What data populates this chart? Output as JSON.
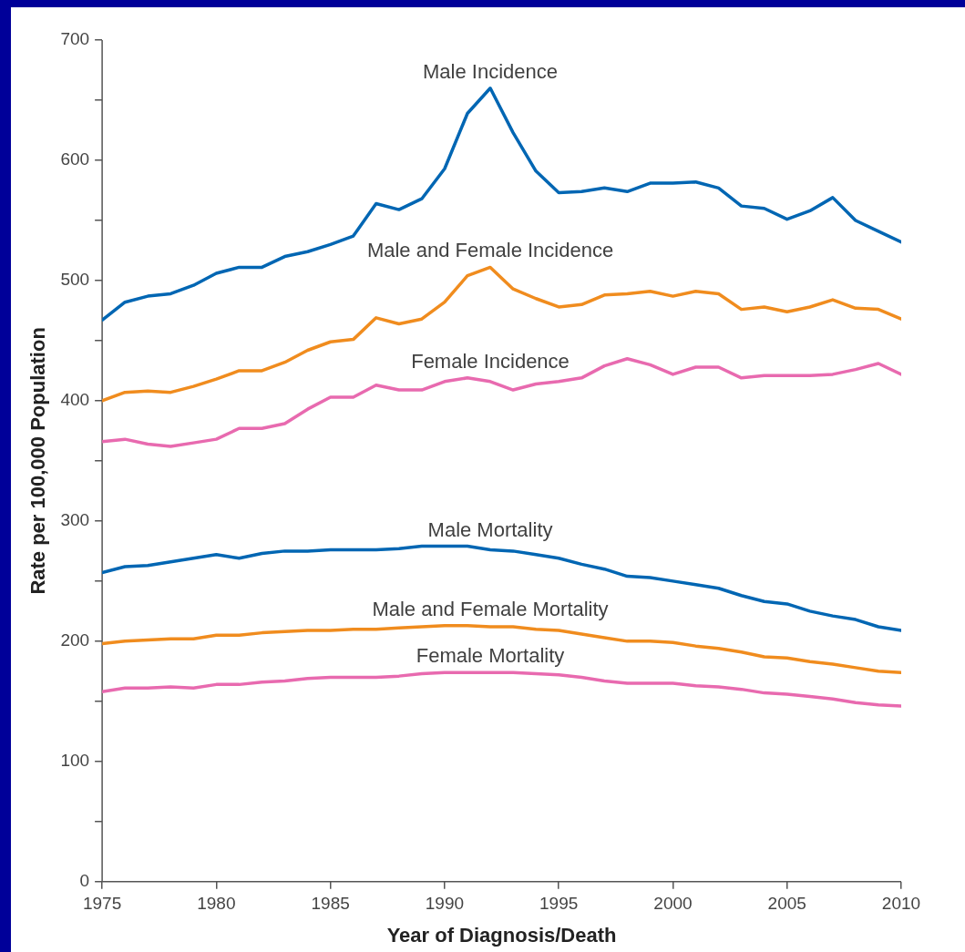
{
  "chart_data": {
    "type": "line",
    "xlabel": "Year of Diagnosis/Death",
    "ylabel": "Rate per 100,000 Population",
    "x": [
      1975,
      1976,
      1977,
      1978,
      1979,
      1980,
      1981,
      1982,
      1983,
      1984,
      1985,
      1986,
      1987,
      1988,
      1989,
      1990,
      1991,
      1992,
      1993,
      1994,
      1995,
      1996,
      1997,
      1998,
      1999,
      2000,
      2001,
      2002,
      2003,
      2004,
      2005,
      2006,
      2007,
      2008,
      2009,
      2010
    ],
    "series": [
      {
        "name": "Male Incidence",
        "color": "#0066b3",
        "values": [
          467,
          482,
          487,
          489,
          496,
          506,
          511,
          511,
          520,
          524,
          530,
          537,
          564,
          559,
          568,
          593,
          639,
          660,
          623,
          591,
          573,
          574,
          577,
          574,
          581,
          581,
          582,
          577,
          562,
          560,
          551,
          558,
          569,
          550,
          541,
          532
        ]
      },
      {
        "name": "Male and Female Incidence",
        "color": "#f08c1e",
        "values": [
          400,
          407,
          408,
          407,
          412,
          418,
          425,
          425,
          432,
          442,
          449,
          451,
          469,
          464,
          468,
          482,
          504,
          511,
          493,
          485,
          478,
          480,
          488,
          489,
          491,
          487,
          491,
          489,
          476,
          478,
          474,
          478,
          484,
          477,
          476,
          468
        ]
      },
      {
        "name": "Female Incidence",
        "color": "#e86aaf",
        "values": [
          366,
          368,
          364,
          362,
          365,
          368,
          377,
          377,
          381,
          393,
          403,
          403,
          413,
          409,
          409,
          416,
          419,
          416,
          409,
          414,
          416,
          419,
          429,
          435,
          430,
          422,
          428,
          428,
          419,
          421,
          421,
          421,
          422,
          426,
          431,
          422
        ]
      },
      {
        "name": "Male Mortality",
        "color": "#0066b3",
        "values": [
          257,
          262,
          263,
          266,
          269,
          272,
          269,
          273,
          275,
          275,
          276,
          276,
          276,
          277,
          279,
          279,
          279,
          276,
          275,
          272,
          269,
          264,
          260,
          254,
          253,
          250,
          247,
          244,
          238,
          233,
          231,
          225,
          221,
          218,
          212,
          209
        ]
      },
      {
        "name": "Male and Female Mortality",
        "color": "#f08c1e",
        "values": [
          198,
          200,
          201,
          202,
          202,
          205,
          205,
          207,
          208,
          209,
          209,
          210,
          210,
          211,
          212,
          213,
          213,
          212,
          212,
          210,
          209,
          206,
          203,
          200,
          200,
          199,
          196,
          194,
          191,
          187,
          186,
          183,
          181,
          178,
          175,
          174
        ]
      },
      {
        "name": "Female Mortality",
        "color": "#e86aaf",
        "values": [
          158,
          161,
          161,
          162,
          161,
          164,
          164,
          166,
          167,
          169,
          170,
          170,
          170,
          171,
          173,
          174,
          174,
          174,
          174,
          173,
          172,
          170,
          167,
          165,
          165,
          165,
          163,
          162,
          160,
          157,
          156,
          154,
          152,
          149,
          147,
          146
        ]
      }
    ],
    "xlim": [
      1975,
      2010
    ],
    "xticks": [
      1975,
      1980,
      1985,
      1990,
      1995,
      2000,
      2005,
      2010
    ],
    "ylim": [
      0,
      700
    ],
    "yticks": [
      0,
      {
        "value": 50,
        "label": null
      },
      100,
      {
        "value": 150,
        "label": null
      },
      200,
      {
        "value": 250,
        "label": null
      },
      300,
      {
        "value": 350,
        "label": null
      },
      400,
      {
        "value": 450,
        "label": null
      },
      500,
      {
        "value": 550,
        "label": null
      },
      600,
      {
        "value": 650,
        "label": null
      },
      700
    ],
    "grid": false,
    "legend": false,
    "marker": "none",
    "line_style": "solid"
  }
}
